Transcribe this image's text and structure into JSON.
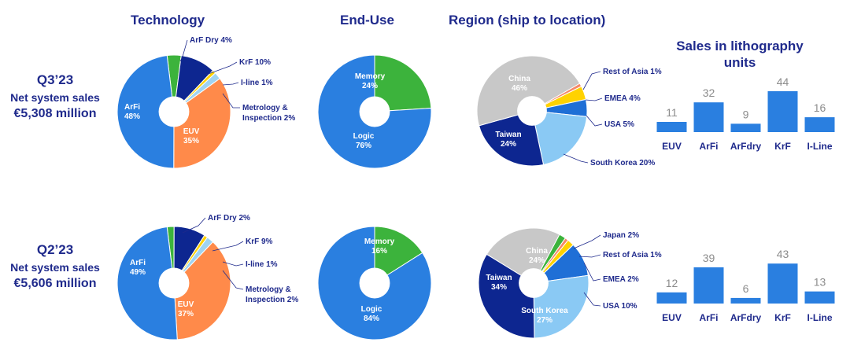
{
  "headers": {
    "technology": "Technology",
    "end_use": "End-Use",
    "region": "Region (ship to location)",
    "sales_title": "Sales in lithography units"
  },
  "colors": {
    "navy": "#1f2a8c",
    "blue": "#2a7fe0",
    "darkblue": "#0d2690",
    "green": "#3cb33c",
    "orange": "#ff8a4a",
    "yellow": "#ffd200",
    "lightblue": "#9fd3f2",
    "gray": "#c8c8c8",
    "salmon": "#f4896a",
    "midblue": "#1f6fd6",
    "skyblue": "#8ac9f4"
  },
  "quarters": [
    {
      "quarter": "Q3’23",
      "net_label": "Net system sales",
      "sales": "€5,308 million"
    },
    {
      "quarter": "Q2’23",
      "net_label": "Net system sales",
      "sales": "€5,606 million"
    }
  ],
  "chart_data": [
    {
      "type": "pie",
      "title": "Technology",
      "period": "Q3’23",
      "slices": [
        {
          "name": "ArF Dry",
          "value": 4,
          "color": "#3cb33c",
          "label": "ArF Dry 4%",
          "label_pos": "outside"
        },
        {
          "name": "KrF",
          "value": 10,
          "color": "#0d2690",
          "label": "KrF 10%",
          "label_pos": "outside"
        },
        {
          "name": "I-line",
          "value": 1,
          "color": "#ffd200",
          "label": "I-line 1%",
          "label_pos": "outside"
        },
        {
          "name": "Metrology & Inspection",
          "value": 2,
          "color": "#9fd3f2",
          "label": "Metrology & Inspection 2%",
          "label_pos": "outside"
        },
        {
          "name": "EUV",
          "value": 35,
          "color": "#ff8a4a",
          "label": "EUV 35%",
          "label_pos": "inside"
        },
        {
          "name": "ArFi",
          "value": 48,
          "color": "#2a7fe0",
          "label": "ArFi 48%",
          "label_pos": "inside"
        }
      ]
    },
    {
      "type": "pie",
      "title": "End-Use",
      "period": "Q3’23",
      "slices": [
        {
          "name": "Memory",
          "value": 24,
          "color": "#3cb33c",
          "label": "Memory 24%",
          "label_pos": "inside"
        },
        {
          "name": "Logic",
          "value": 76,
          "color": "#2a7fe0",
          "label": "Logic 76%",
          "label_pos": "inside"
        }
      ]
    },
    {
      "type": "pie",
      "title": "Region (ship to location)",
      "period": "Q3’23",
      "slices": [
        {
          "name": "Rest of Asia",
          "value": 1,
          "color": "#f4896a",
          "label": "Rest of Asia 1%",
          "label_pos": "outside"
        },
        {
          "name": "EMEA",
          "value": 4,
          "color": "#ffd200",
          "label": "EMEA 4%",
          "label_pos": "outside"
        },
        {
          "name": "USA",
          "value": 5,
          "color": "#1f6fd6",
          "label": "USA 5%",
          "label_pos": "outside"
        },
        {
          "name": "South Korea",
          "value": 20,
          "color": "#8ac9f4",
          "label": "South Korea 20%",
          "label_pos": "outside"
        },
        {
          "name": "Taiwan",
          "value": 24,
          "color": "#0d2690",
          "label": "Taiwan 24%",
          "label_pos": "inside"
        },
        {
          "name": "China",
          "value": 46,
          "color": "#c8c8c8",
          "label": "China 46%",
          "label_pos": "inside"
        }
      ]
    },
    {
      "type": "bar",
      "title": "Sales in lithography units",
      "period": "Q3’23",
      "categories": [
        "EUV",
        "ArFi",
        "ArFdry",
        "KrF",
        "I-Line"
      ],
      "values": [
        11,
        32,
        9,
        44,
        16
      ],
      "ylim": [
        0,
        44
      ]
    },
    {
      "type": "pie",
      "title": "Technology",
      "period": "Q2’23",
      "slices": [
        {
          "name": "ArF Dry",
          "value": 2,
          "color": "#3cb33c",
          "label": "ArF Dry 2%",
          "label_pos": "outside"
        },
        {
          "name": "KrF",
          "value": 9,
          "color": "#0d2690",
          "label": "KrF 9%",
          "label_pos": "outside"
        },
        {
          "name": "I-line",
          "value": 1,
          "color": "#ffd200",
          "label": "I-line 1%",
          "label_pos": "outside"
        },
        {
          "name": "Metrology & Inspection",
          "value": 2,
          "color": "#9fd3f2",
          "label": "Metrology & Inspection 2%",
          "label_pos": "outside"
        },
        {
          "name": "EUV",
          "value": 37,
          "color": "#ff8a4a",
          "label": "EUV 37%",
          "label_pos": "inside"
        },
        {
          "name": "ArFi",
          "value": 49,
          "color": "#2a7fe0",
          "label": "ArFi 49%",
          "label_pos": "inside"
        }
      ]
    },
    {
      "type": "pie",
      "title": "End-Use",
      "period": "Q2’23",
      "slices": [
        {
          "name": "Memory",
          "value": 16,
          "color": "#3cb33c",
          "label": "Memory 16%",
          "label_pos": "inside"
        },
        {
          "name": "Logic",
          "value": 84,
          "color": "#2a7fe0",
          "label": "Logic 84%",
          "label_pos": "inside"
        }
      ]
    },
    {
      "type": "pie",
      "title": "Region (ship to location)",
      "period": "Q2’23",
      "slices": [
        {
          "name": "Japan",
          "value": 2,
          "color": "#3cb33c",
          "label": "Japan 2%",
          "label_pos": "outside"
        },
        {
          "name": "Rest of Asia",
          "value": 1,
          "color": "#f4896a",
          "label": "Rest of Asia 1%",
          "label_pos": "outside"
        },
        {
          "name": "EMEA",
          "value": 2,
          "color": "#ffd200",
          "label": "EMEA 2%",
          "label_pos": "outside"
        },
        {
          "name": "USA",
          "value": 10,
          "color": "#1f6fd6",
          "label": "USA 10%",
          "label_pos": "outside"
        },
        {
          "name": "South Korea",
          "value": 27,
          "color": "#8ac9f4",
          "label": "South Korea 27%",
          "label_pos": "inside"
        },
        {
          "name": "Taiwan",
          "value": 34,
          "color": "#0d2690",
          "label": "Taiwan 34%",
          "label_pos": "inside"
        },
        {
          "name": "China",
          "value": 24,
          "color": "#c8c8c8",
          "label": "China 24%",
          "label_pos": "inside"
        }
      ]
    },
    {
      "type": "bar",
      "title": "Sales in lithography units",
      "period": "Q2’23",
      "categories": [
        "EUV",
        "ArFi",
        "ArFdry",
        "KrF",
        "I-Line"
      ],
      "values": [
        12,
        39,
        6,
        43,
        13
      ],
      "ylim": [
        0,
        44
      ]
    }
  ]
}
